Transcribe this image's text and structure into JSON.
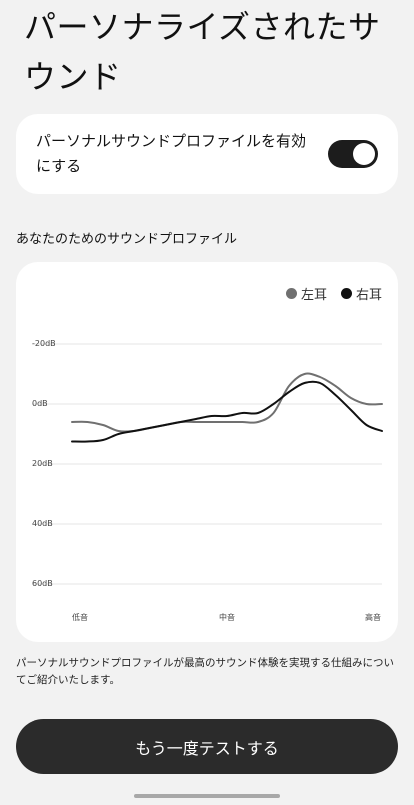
{
  "header": {
    "title": "パーソナライズされたサウンド"
  },
  "toggle": {
    "label": "パーソナルサウンドプロファイルを有効にする",
    "state": "on"
  },
  "profile_section": {
    "label": "あなたのためのサウンドプロファイル"
  },
  "chart_data": {
    "type": "line",
    "x": [
      0,
      0.05,
      0.1,
      0.15,
      0.2,
      0.25,
      0.3,
      0.35,
      0.4,
      0.45,
      0.5,
      0.55,
      0.6,
      0.65,
      0.7,
      0.75,
      0.8,
      0.85,
      0.9,
      0.95,
      1
    ],
    "categories": [
      "低音",
      "中音",
      "高音"
    ],
    "y_ticks": [
      "-20dB",
      "0dB",
      "20dB",
      "40dB",
      "60dB"
    ],
    "y_tick_values": [
      -20,
      0,
      20,
      40,
      60
    ],
    "ylim": [
      -20,
      60
    ],
    "y_inverted": true,
    "grid": true,
    "legend": "top-right",
    "series": [
      {
        "name": "左耳",
        "color": "#707070",
        "values": [
          6,
          6,
          7,
          9,
          9,
          8,
          7,
          6,
          6,
          6,
          6,
          6,
          6,
          3,
          -6,
          -10,
          -9,
          -6,
          -2,
          0,
          0
        ]
      },
      {
        "name": "右耳",
        "color": "#111111",
        "values": [
          12.5,
          12.5,
          12,
          10,
          9,
          8,
          7,
          6,
          5,
          4,
          4,
          3,
          3,
          0,
          -4,
          -7,
          -7,
          -3,
          2,
          7,
          9
        ]
      }
    ]
  },
  "description": "パーソナルサウンドプロファイルが最高のサウンド体験を実現する仕組みについてご紹介いたします。",
  "cta": {
    "label": "もう一度テストする"
  },
  "colors": {
    "background": "#f2f2f2",
    "card": "#ffffff",
    "accent": "#1c1c1c"
  }
}
